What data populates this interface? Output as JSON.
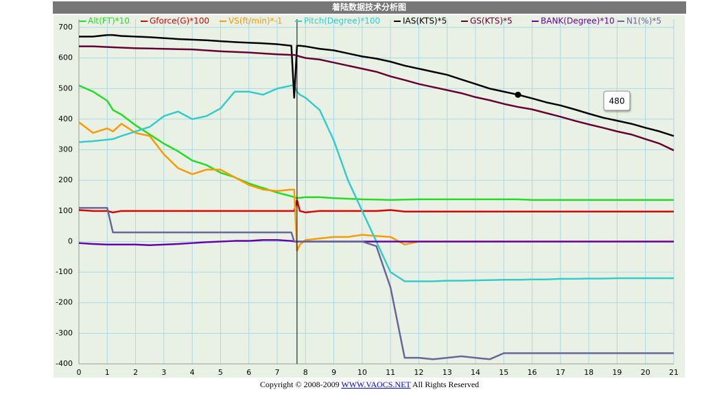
{
  "chart_data": {
    "type": "line",
    "title": "着陆数据技术分析图",
    "x": [
      0,
      0.5,
      1,
      1.2,
      1.5,
      2,
      2.5,
      3,
      3.5,
      4,
      4.5,
      5,
      5.5,
      6,
      6.5,
      7,
      7.5,
      7.6,
      7.7,
      7.8,
      8,
      8.5,
      9,
      9.5,
      10,
      10.5,
      11,
      11.5,
      12,
      12.5,
      13,
      13.5,
      14,
      14.5,
      15,
      15.5,
      16,
      16.5,
      17,
      17.5,
      18,
      18.5,
      19,
      19.5,
      20,
      20.5,
      21
    ],
    "series": [
      {
        "name": "Alt(FT)*10",
        "color": "#22dd22",
        "values": [
          510,
          490,
          460,
          430,
          415,
          380,
          350,
          320,
          295,
          265,
          250,
          225,
          210,
          190,
          175,
          160,
          148,
          145,
          142,
          143,
          145,
          145,
          142,
          140,
          138,
          137,
          136,
          137,
          138,
          138,
          138,
          138,
          138,
          138,
          138,
          138,
          136,
          136,
          136,
          136,
          136,
          136,
          136,
          136,
          136,
          136,
          136
        ]
      },
      {
        "name": "Gforce(G)*100",
        "color": "#dd0000",
        "values": [
          103,
          100,
          100,
          95,
          100,
          100,
          100,
          100,
          100,
          100,
          100,
          100,
          100,
          100,
          100,
          100,
          100,
          100,
          135,
          100,
          95,
          100,
          100,
          100,
          100,
          100,
          103,
          98,
          98,
          98,
          98,
          98,
          98,
          98,
          98,
          98,
          98,
          98,
          98,
          98,
          98,
          98,
          98,
          98,
          98,
          98,
          98
        ]
      },
      {
        "name": "VS(ft/min)*-1",
        "color": "#ff9900",
        "values": [
          390,
          355,
          370,
          360,
          385,
          355,
          345,
          285,
          240,
          220,
          235,
          235,
          210,
          185,
          170,
          165,
          170,
          170,
          -30,
          -10,
          5,
          10,
          15,
          15,
          22,
          18,
          15,
          -10,
          0,
          0,
          0,
          0,
          0,
          0,
          0,
          0,
          0,
          0,
          0,
          0,
          0,
          0,
          0,
          0,
          0,
          0,
          0
        ]
      },
      {
        "name": "Pitch(Degree)*100",
        "color": "#33cccc",
        "values": [
          325,
          328,
          333,
          335,
          345,
          360,
          375,
          410,
          425,
          400,
          410,
          435,
          490,
          490,
          480,
          500,
          510,
          510,
          490,
          480,
          470,
          430,
          330,
          200,
          100,
          0,
          -100,
          -130,
          -130,
          -130,
          -128,
          -128,
          -127,
          -126,
          -125,
          -125,
          -124,
          -124,
          -122,
          -122,
          -121,
          -121,
          -120,
          -120,
          -120,
          -120,
          -120
        ]
      },
      {
        "name": "IAS(KTS)*5",
        "color": "#000000",
        "values": [
          670,
          670,
          675,
          675,
          672,
          670,
          668,
          665,
          662,
          660,
          658,
          655,
          652,
          650,
          648,
          645,
          640,
          470,
          640,
          640,
          638,
          630,
          625,
          615,
          605,
          598,
          588,
          575,
          565,
          555,
          545,
          530,
          515,
          500,
          490,
          480,
          468,
          455,
          445,
          432,
          418,
          405,
          395,
          385,
          372,
          360,
          345
        ]
      },
      {
        "name": "GS(KTS)*5",
        "color": "#660033",
        "values": [
          638,
          638,
          636,
          635,
          634,
          632,
          631,
          630,
          629,
          628,
          625,
          622,
          620,
          618,
          615,
          612,
          610,
          610,
          608,
          605,
          600,
          595,
          585,
          575,
          565,
          555,
          540,
          528,
          515,
          505,
          495,
          485,
          472,
          462,
          450,
          440,
          432,
          420,
          408,
          395,
          383,
          372,
          360,
          350,
          335,
          320,
          298
        ]
      },
      {
        "name": "BANK(Degree)*10",
        "color": "#6600aa",
        "values": [
          -5,
          -8,
          -10,
          -10,
          -10,
          -10,
          -12,
          -10,
          -8,
          -5,
          -2,
          0,
          2,
          2,
          5,
          5,
          2,
          0,
          0,
          0,
          0,
          0,
          0,
          0,
          0,
          0,
          0,
          0,
          0,
          0,
          0,
          0,
          0,
          0,
          0,
          0,
          0,
          0,
          0,
          0,
          0,
          0,
          0,
          0,
          0,
          0,
          0
        ]
      },
      {
        "name": "N1(%)*5",
        "color": "#666699",
        "values": [
          110,
          110,
          110,
          30,
          30,
          30,
          30,
          30,
          30,
          30,
          30,
          30,
          30,
          30,
          30,
          30,
          30,
          0,
          0,
          0,
          0,
          0,
          0,
          0,
          0,
          -15,
          -150,
          -380,
          -380,
          -385,
          -380,
          -375,
          -380,
          -385,
          -365,
          -365,
          -365,
          -365,
          -365,
          -365,
          -365,
          -365,
          -365,
          -365,
          -365,
          -365,
          -365
        ]
      }
    ],
    "xlim": [
      0,
      21
    ],
    "xticks": [
      0,
      1,
      2,
      3,
      4,
      5,
      6,
      7,
      8,
      9,
      10,
      11,
      12,
      13,
      14,
      15,
      16,
      17,
      18,
      19,
      20,
      21
    ],
    "ylim": [
      -400,
      700
    ],
    "yticks": [
      -400,
      -300,
      -200,
      -100,
      0,
      100,
      200,
      300,
      400,
      500,
      600,
      700
    ],
    "grid": true,
    "cursor_x": 7.7,
    "annotation": {
      "x": 15.5,
      "value": 480
    }
  },
  "footer": {
    "text_before": "Copyright © 2008-2009",
    "link": "WWW.VAOCS.NET",
    "text_after": "All Rights Reserved"
  }
}
